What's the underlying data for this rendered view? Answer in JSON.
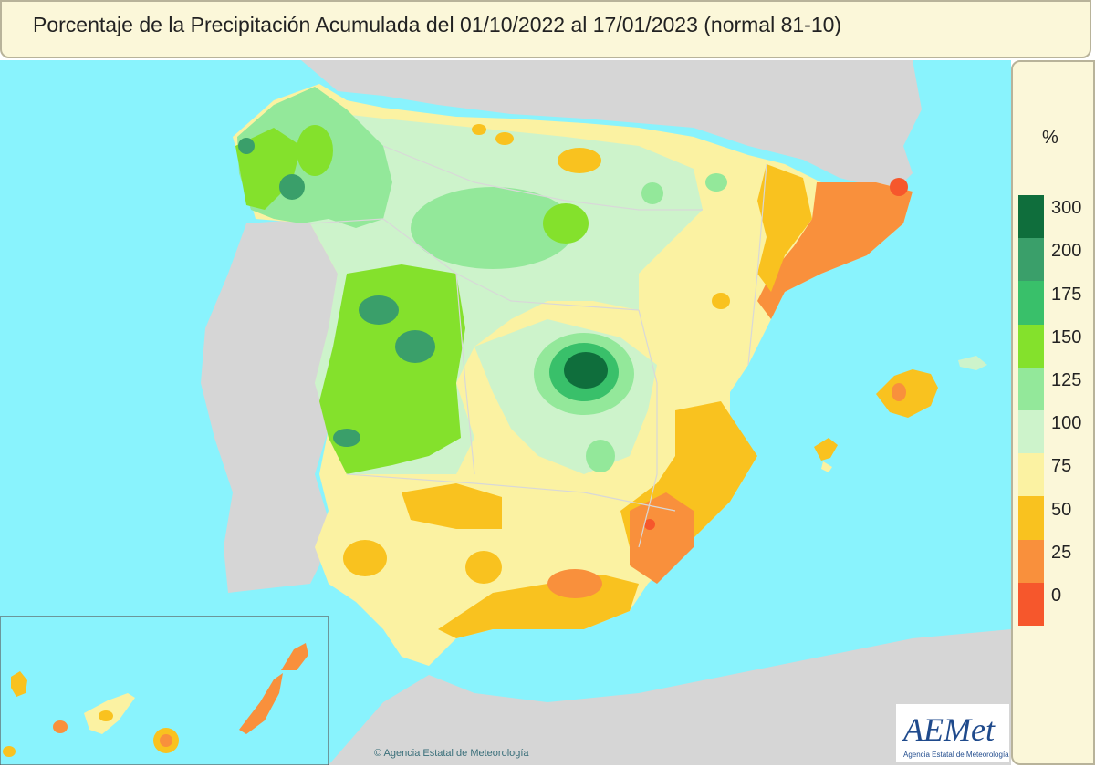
{
  "header": {
    "title": "Porcentaje de la Precipitación Acumulada del 01/10/2022 al 17/01/2023 (normal 81-10)"
  },
  "legend": {
    "unit": "%",
    "items": [
      {
        "label": "300",
        "color": "#0f6e3c"
      },
      {
        "label": "200",
        "color": "#3a9f6a"
      },
      {
        "label": "175",
        "color": "#39c06a"
      },
      {
        "label": "150",
        "color": "#84e12c"
      },
      {
        "label": "125",
        "color": "#93e89a"
      },
      {
        "label": "100",
        "color": "#cdf3cb"
      },
      {
        "label": "75",
        "color": "#fbf2a2"
      },
      {
        "label": "50",
        "color": "#f9c21f"
      },
      {
        "label": "25",
        "color": "#f9903c"
      },
      {
        "label": "0",
        "color": "#f6572c"
      }
    ]
  },
  "footer": {
    "copyright": "© Agencia Estatal de Meteorología",
    "logo_text": "AEMet",
    "logo_subtext": "Agencia Estatal de Meteorología"
  },
  "colors": {
    "sea": "#89f3fd",
    "neighbor_land": "#d6d6d6",
    "panel": "#fbf7d9"
  }
}
